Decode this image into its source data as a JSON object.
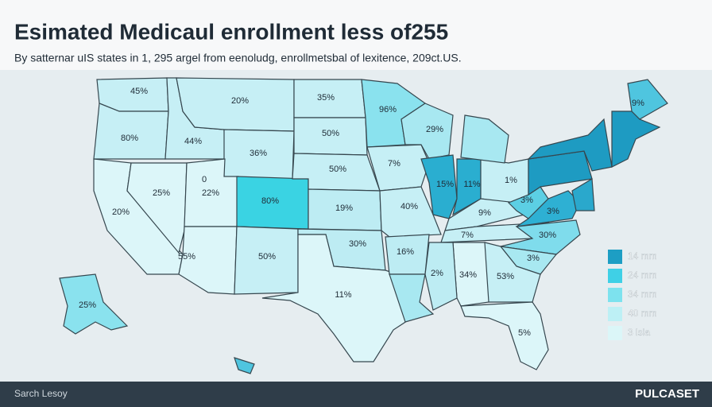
{
  "header": {
    "title": "Esimated Medicaul enrollment less of255",
    "subtitle": "By satternar uIS states in 1, 295 argel from eenoludg, enrollmetsbal of lexitence, 209ct.US."
  },
  "map": {
    "regions": [
      {
        "label": "45%",
        "color": "#c6eff5"
      },
      {
        "label": "80%",
        "color": "#c6eff5"
      },
      {
        "label": "20%",
        "color": "#dcf6f9"
      },
      {
        "label": "25%",
        "color": "#dcf6f9"
      },
      {
        "label": "44%",
        "color": "#c6eff5"
      },
      {
        "label": "20%",
        "color": "#c6eff5"
      },
      {
        "label": "36%",
        "color": "#c6eff5"
      },
      {
        "label": "22%",
        "color": "#dcf6f9"
      },
      {
        "label": "80%",
        "color": "#3ad3e3"
      },
      {
        "label": "55%",
        "color": "#dcf6f9"
      },
      {
        "label": "50%",
        "color": "#c6eff5"
      },
      {
        "label": "35%",
        "color": "#c6eff5"
      },
      {
        "label": "50%",
        "color": "#c6eff5"
      },
      {
        "label": "50%",
        "color": "#c6eff5"
      },
      {
        "label": "19%",
        "color": "#bdecf3"
      },
      {
        "label": "30%",
        "color": "#bdecf3"
      },
      {
        "label": "11%",
        "color": "#dcf6f9"
      },
      {
        "label": "96%",
        "color": "#8ae2ee"
      },
      {
        "label": "7%",
        "color": "#c6eff5"
      },
      {
        "label": "40%",
        "color": "#c6eff5"
      },
      {
        "label": "16%",
        "color": "#bdecf3"
      },
      {
        "color": "#a8e8f1"
      },
      {
        "label": "29%",
        "color": "#a8e8f1"
      },
      {
        "label": "15%",
        "color": "#2aaed0"
      },
      {
        "label": "11%",
        "color": "#2aaed0"
      },
      {
        "label": "1%",
        "color": "#c6eff5"
      },
      {
        "color": "#a8e8f1"
      },
      {
        "label": "9%",
        "color": "#c6eff5"
      },
      {
        "label": "7%",
        "color": "#c6eff5"
      },
      {
        "label": "3%",
        "color": "#5ccfe4"
      },
      {
        "label": "3%",
        "color": "#2eb0d3"
      },
      {
        "label": "30%",
        "color": "#7fdcec"
      },
      {
        "label": "3%",
        "color": "#a8e8f1"
      },
      {
        "label": "53%",
        "color": "#c6eff5"
      },
      {
        "label": "34%",
        "color": "#dcf6f9"
      },
      {
        "label": "2%",
        "color": "#bdecf3"
      },
      {
        "label": "5%",
        "color": "#dcf6f9"
      },
      {
        "color": "#1e9bc2"
      },
      {
        "color": "#1e9bc2"
      },
      {
        "color": "#2aa8cc"
      },
      {
        "color": "#1e9bc2"
      },
      {
        "label": "9%",
        "color": "#4fc5df"
      },
      {
        "label": "25%",
        "color": "#8ae2ee"
      },
      {
        "color": "#4fc5df"
      }
    ],
    "marks": [
      "0"
    ]
  },
  "legend": {
    "items": [
      {
        "label": "14 mm",
        "color": "#1d9ec4"
      },
      {
        "label": "24 mm",
        "color": "#3fd0e6"
      },
      {
        "label": "34 mm",
        "color": "#7de2ee"
      },
      {
        "label": "40 mm",
        "color": "#bdf0f5"
      },
      {
        "label": "3 lsia",
        "color": "#dbf6f8"
      }
    ]
  },
  "footer": {
    "left": "Sarch Lesoy",
    "right": "PULCASET"
  }
}
